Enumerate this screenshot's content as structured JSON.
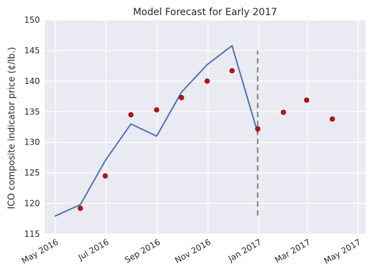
{
  "chart_data": {
    "type": "line",
    "title": "Model Forecast for Early 2017",
    "xlabel": "",
    "ylabel": "ICO composite indicator price (¢/lb.)",
    "ylim": [
      115,
      150
    ],
    "yticks": [
      115,
      120,
      125,
      130,
      135,
      140,
      145,
      150
    ],
    "xlim": [
      "2016-04-18",
      "2017-05-10"
    ],
    "xticks": [
      {
        "date": "2016-05-01",
        "label": "May 2016"
      },
      {
        "date": "2016-07-01",
        "label": "Jul 2016"
      },
      {
        "date": "2016-09-01",
        "label": "Sep 2016"
      },
      {
        "date": "2016-11-01",
        "label": "Nov 2016"
      },
      {
        "date": "2017-01-01",
        "label": "Jan 2017"
      },
      {
        "date": "2017-03-01",
        "label": "Mar 2017"
      },
      {
        "date": "2017-05-01",
        "label": "May 2017"
      }
    ],
    "grid": true,
    "series": [
      {
        "kind": "line",
        "color": "#4c72b0",
        "points": [
          {
            "x": "2016-04-30",
            "y": 117.9
          },
          {
            "x": "2016-05-31",
            "y": 119.8
          },
          {
            "x": "2016-06-30",
            "y": 127.0
          },
          {
            "x": "2016-07-31",
            "y": 133.0
          },
          {
            "x": "2016-08-31",
            "y": 131.0
          },
          {
            "x": "2016-09-30",
            "y": 138.2
          },
          {
            "x": "2016-10-31",
            "y": 142.7
          },
          {
            "x": "2016-11-30",
            "y": 145.8
          },
          {
            "x": "2016-12-31",
            "y": 131.5
          }
        ]
      },
      {
        "kind": "scatter",
        "color": "#d40000",
        "points": [
          {
            "x": "2016-05-31",
            "y": 119.2
          },
          {
            "x": "2016-06-30",
            "y": 124.5
          },
          {
            "x": "2016-07-31",
            "y": 134.5
          },
          {
            "x": "2016-08-31",
            "y": 135.3
          },
          {
            "x": "2016-09-30",
            "y": 137.3
          },
          {
            "x": "2016-10-31",
            "y": 140.0
          },
          {
            "x": "2016-11-30",
            "y": 141.7
          },
          {
            "x": "2016-12-31",
            "y": 132.2
          },
          {
            "x": "2017-01-31",
            "y": 134.9
          },
          {
            "x": "2017-02-28",
            "y": 136.9
          },
          {
            "x": "2017-03-31",
            "y": 133.8
          }
        ]
      }
    ],
    "annotations": [
      {
        "type": "vline",
        "x": "2016-12-31",
        "y_from": 118.0,
        "y_to": 145.0,
        "style": "dashed",
        "color": "#808080"
      }
    ]
  }
}
